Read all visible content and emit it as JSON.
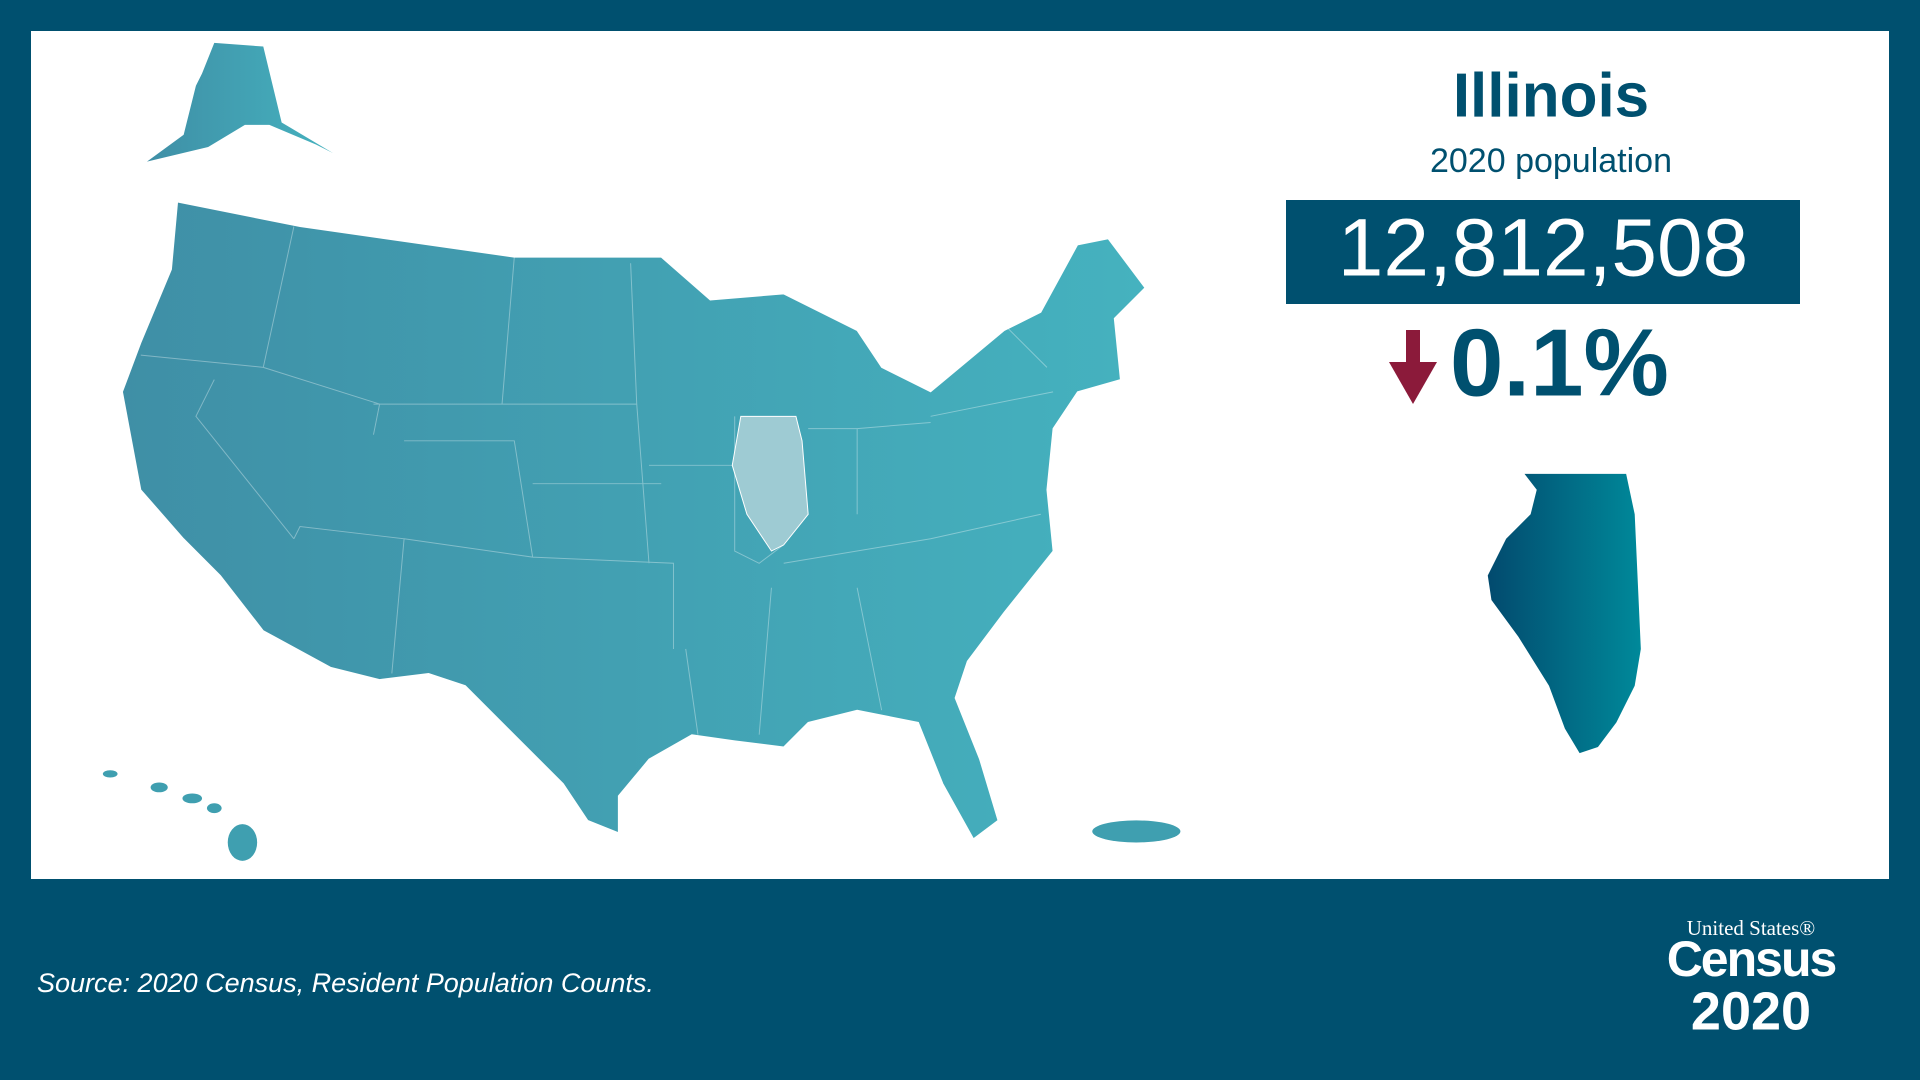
{
  "header": {
    "title": "Illinois",
    "subtitle": "2020 population"
  },
  "stat": {
    "population": "12,812,508",
    "change": "0.1%"
  },
  "footer": {
    "source": "Source: 2020 Census, Resident Population Counts."
  },
  "logo": {
    "line1": "United States®",
    "line2": "Census",
    "line3": "2020"
  }
}
